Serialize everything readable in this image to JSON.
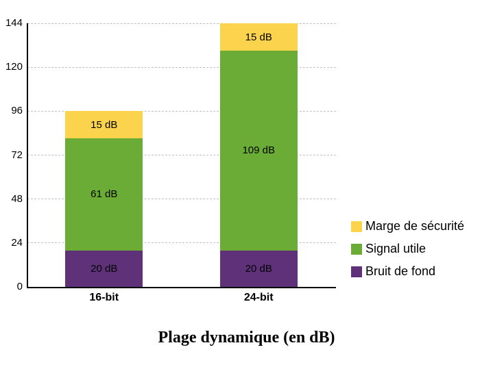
{
  "chart_data": {
    "type": "bar",
    "stacked": true,
    "title": "Plage dynamique (en dB)",
    "categories": [
      "16-bit",
      "24-bit"
    ],
    "series": [
      {
        "name": "Bruit de fond",
        "color": "#5e3179",
        "values": [
          20,
          20
        ],
        "labels": [
          "20 dB",
          "20 dB"
        ]
      },
      {
        "name": "Signal utile",
        "color": "#6aac35",
        "values": [
          61,
          109
        ],
        "labels": [
          "61 dB",
          "109 dB"
        ]
      },
      {
        "name": "Marge de sécurité",
        "color": "#fcd34c",
        "values": [
          15,
          15
        ],
        "labels": [
          "15 dB",
          "15 dB"
        ]
      }
    ],
    "totals": [
      96,
      144
    ],
    "ylim": [
      0,
      144
    ],
    "yticks": [
      "0",
      "24",
      "48",
      "72",
      "96",
      "120",
      "144"
    ],
    "grid": "horizontal-dashed",
    "gridline_color": "#bfbfbf",
    "axis_color": "#000000",
    "legend": {
      "position": "right",
      "items": [
        {
          "label": "Marge de sécurité",
          "color": "#fcd34c"
        },
        {
          "label": "Signal utile",
          "color": "#6aac35"
        },
        {
          "label": "Bruit de fond",
          "color": "#5e3179"
        }
      ]
    }
  }
}
